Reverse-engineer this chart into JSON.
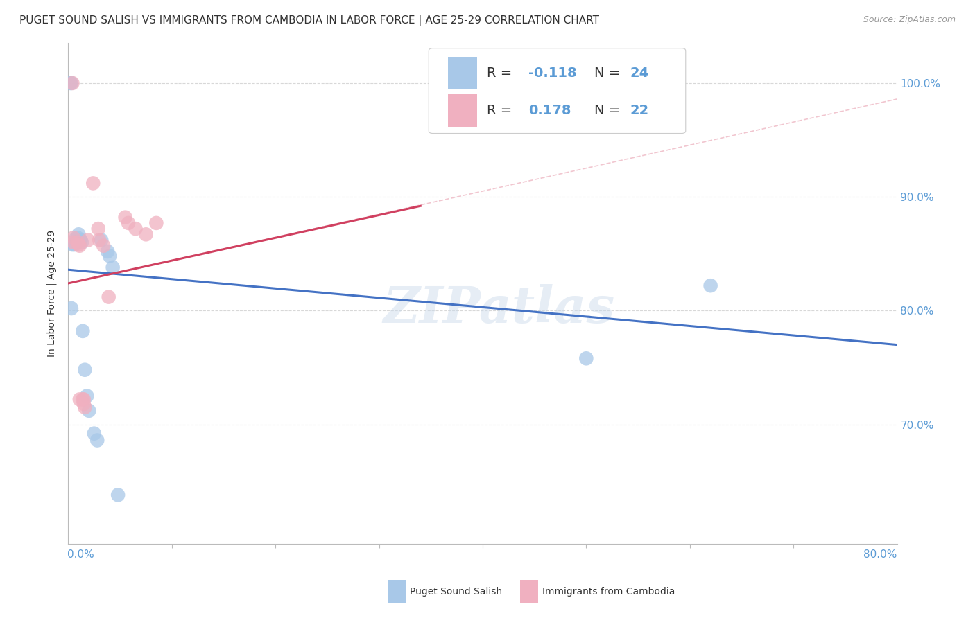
{
  "title": "PUGET SOUND SALISH VS IMMIGRANTS FROM CAMBODIA IN LABOR FORCE | AGE 25-29 CORRELATION CHART",
  "source": "Source: ZipAtlas.com",
  "ylabel": "In Labor Force | Age 25-29",
  "right_yticks": [
    0.7,
    0.8,
    0.9,
    1.0
  ],
  "right_yticklabels": [
    "70.0%",
    "80.0%",
    "90.0%",
    "100.0%"
  ],
  "xlim": [
    0.0,
    0.8
  ],
  "ylim": [
    0.595,
    1.035
  ],
  "blue_R": "-0.118",
  "blue_N": "24",
  "pink_R": "0.178",
  "pink_N": "22",
  "blue_points_x": [
    0.002,
    0.003,
    0.004,
    0.006,
    0.007,
    0.009,
    0.01,
    0.011,
    0.012,
    0.013,
    0.014,
    0.016,
    0.018,
    0.02,
    0.025,
    0.028,
    0.032,
    0.038,
    0.04,
    0.043,
    0.048,
    0.5,
    0.62,
    0.003
  ],
  "blue_points_y": [
    1.0,
    1.0,
    0.858,
    0.858,
    0.863,
    0.864,
    0.867,
    0.862,
    0.862,
    0.86,
    0.782,
    0.748,
    0.725,
    0.712,
    0.692,
    0.686,
    0.862,
    0.852,
    0.848,
    0.838,
    0.638,
    0.758,
    0.822,
    0.802
  ],
  "pink_points_x": [
    0.004,
    0.005,
    0.005,
    0.009,
    0.01,
    0.011,
    0.011,
    0.014,
    0.015,
    0.019,
    0.024,
    0.029,
    0.03,
    0.034,
    0.039,
    0.055,
    0.058,
    0.065,
    0.075,
    0.085,
    0.015,
    0.016
  ],
  "pink_points_y": [
    1.0,
    0.864,
    0.86,
    0.86,
    0.858,
    0.857,
    0.722,
    0.722,
    0.718,
    0.862,
    0.912,
    0.872,
    0.862,
    0.857,
    0.812,
    0.882,
    0.877,
    0.872,
    0.867,
    0.877,
    0.722,
    0.715
  ],
  "blue_line_x": [
    0.0,
    0.8
  ],
  "blue_line_y": [
    0.836,
    0.77
  ],
  "pink_line_x": [
    0.0,
    0.34
  ],
  "pink_line_y": [
    0.824,
    0.892
  ],
  "pink_ext_line_x": [
    0.0,
    0.8
  ],
  "pink_ext_line_y": [
    0.824,
    0.986
  ],
  "watermark": "ZIPatlas",
  "blue_color": "#a8c8e8",
  "pink_color": "#f0b0c0",
  "blue_line_color": "#4472c4",
  "pink_line_color": "#d04060",
  "pink_ext_color": "#e8a0b0",
  "grid_color": "#d8d8d8",
  "background_color": "#ffffff",
  "title_fontsize": 11,
  "source_fontsize": 9,
  "axis_label_fontsize": 10,
  "tick_fontsize": 11,
  "legend_fontsize": 14
}
